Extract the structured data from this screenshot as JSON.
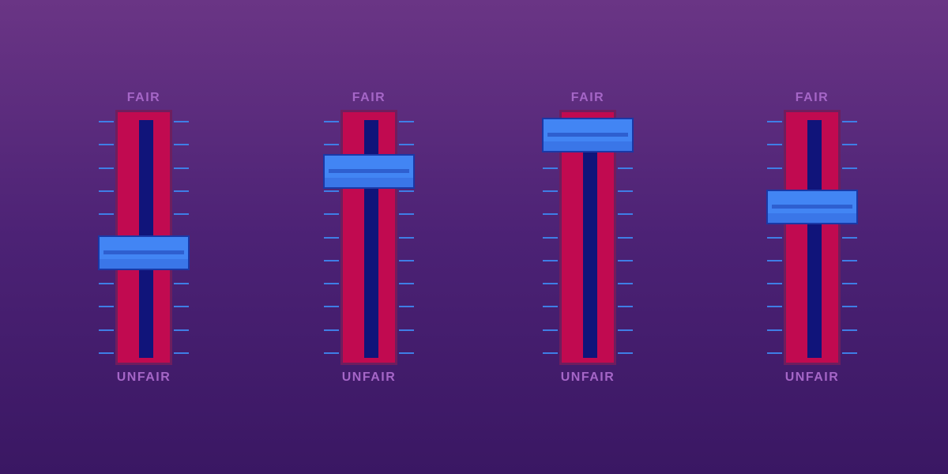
{
  "labels": {
    "top": "FAIR",
    "bottom": "UNFAIR"
  },
  "colors": {
    "label": "#a566c7",
    "track": "#c10a50",
    "slot": "#10147a",
    "handle": "#4285f4",
    "tick": "#3f7ee6"
  },
  "faders": [
    {
      "level": 0.44
    },
    {
      "level": 0.76
    },
    {
      "level": 0.9
    },
    {
      "level": 0.62
    }
  ]
}
